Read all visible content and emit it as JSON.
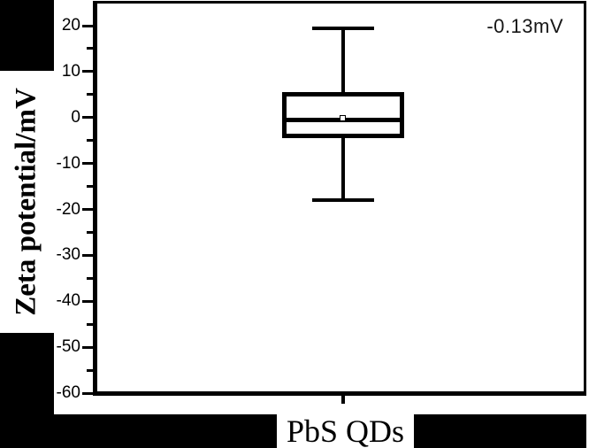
{
  "figure": {
    "background_color": "#ffffff",
    "line_color": "#000000"
  },
  "chart_data": {
    "type": "box",
    "title": "",
    "xlabel": "PbS QDs",
    "ylabel": "Zeta potential/mV",
    "annotation": "-0.13mV",
    "categories": [
      "PbS QDs"
    ],
    "series": [
      {
        "name": "PbS QDs",
        "whisker_high": 19.5,
        "q3": 5,
        "median": -0.5,
        "mean": -0.13,
        "q1": -4,
        "whisker_low": -18
      }
    ],
    "ylim": [
      -60,
      25
    ],
    "yticks_major": [
      20,
      10,
      0,
      -10,
      -20,
      -30,
      -40,
      -50,
      -60
    ],
    "yticks_minor": [
      15,
      5,
      -5,
      -15,
      -25,
      -35,
      -45,
      -55
    ],
    "grid": false,
    "legend": null
  }
}
